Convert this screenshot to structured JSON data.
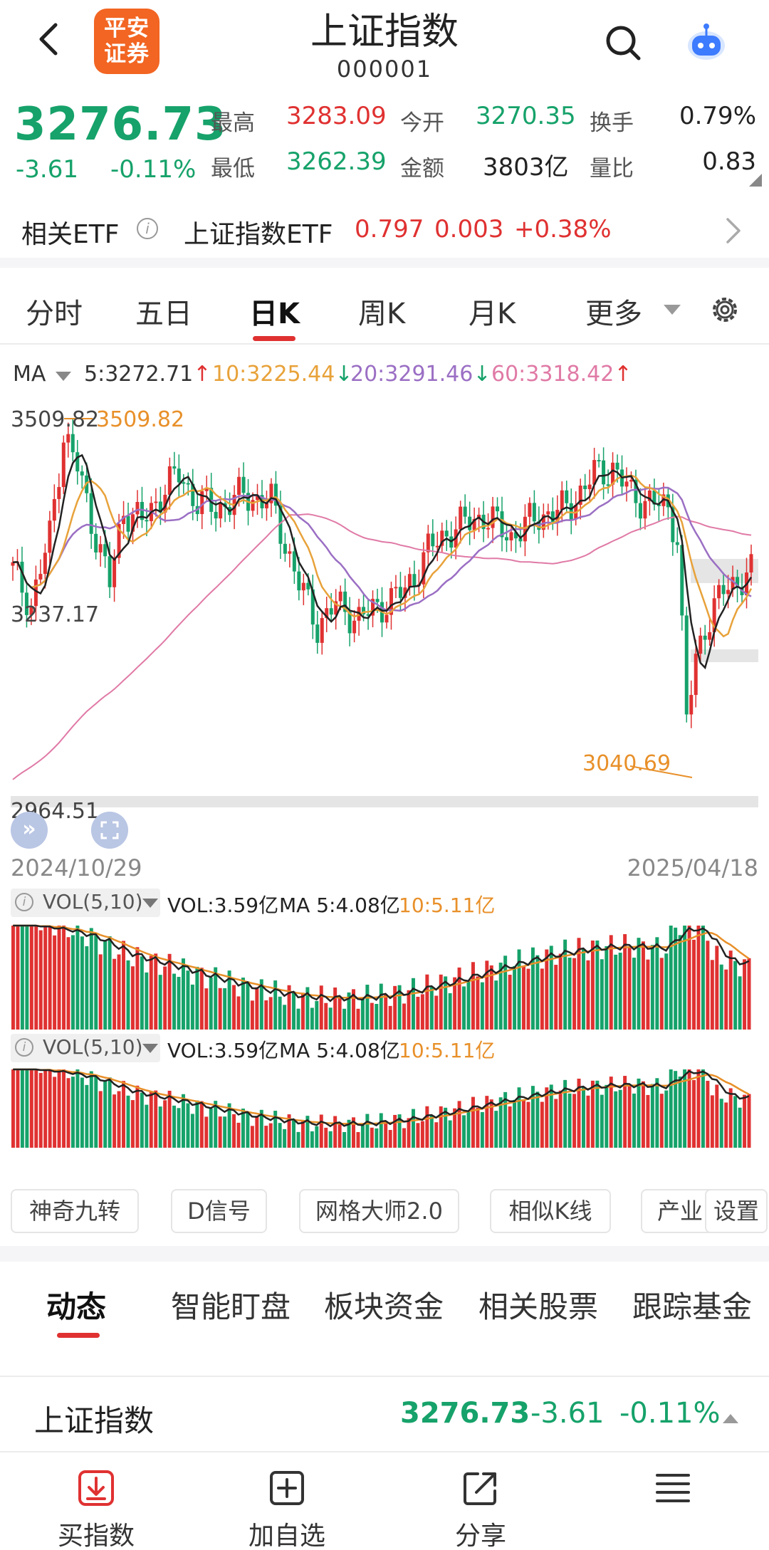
{
  "header": {
    "logo_text": "平安\n证券",
    "title": "上证指数",
    "code": "000001"
  },
  "quote": {
    "price": "3276.73",
    "change": "-3.61",
    "change_pct": "-0.11%",
    "fields": [
      {
        "label": "最高",
        "value": "3283.09",
        "color": "red"
      },
      {
        "label": "今开",
        "value": "3270.35",
        "color": "green"
      },
      {
        "label": "换手",
        "value": "0.79%",
        "color": "black"
      },
      {
        "label": "最低",
        "value": "3262.39",
        "color": "green"
      },
      {
        "label": "金额",
        "value": "3803亿",
        "color": "black"
      },
      {
        "label": "量比",
        "value": "0.83",
        "color": "black"
      }
    ]
  },
  "etf": {
    "label": "相关ETF",
    "name": "上证指数ETF",
    "price": "0.797",
    "change": "0.003",
    "change_pct": "+0.38%"
  },
  "period_tabs": {
    "items": [
      "分时",
      "五日",
      "日K",
      "周K",
      "月K",
      "更多"
    ],
    "active": "日K"
  },
  "ma_legend": {
    "label": "MA",
    "items": [
      {
        "text": "5:3272.71",
        "arrow": "↑",
        "color": "#333333",
        "arrow_color": "#e03131"
      },
      {
        "text": "10:3225.44",
        "arrow": "↓",
        "color": "#e8a23a",
        "arrow_color": "#16a26a"
      },
      {
        "text": "20:3291.46",
        "arrow": "↓",
        "color": "#9b6fc4",
        "arrow_color": "#16a26a"
      },
      {
        "text": "60:3318.42",
        "arrow": "↑",
        "color": "#e07aa6",
        "arrow_color": "#e03131"
      }
    ]
  },
  "chart_axis": {
    "high_label": "3509.82",
    "high_marker": "3509.82",
    "mid_label": "3237.17",
    "low_label": "2964.51",
    "min_marker": "3040.69",
    "date_start": "2024/10/29",
    "date_end": "2025/04/18"
  },
  "chart_data": {
    "type": "candlestick",
    "y_range": [
      2964.51,
      3509.82
    ],
    "x_range": [
      "2024/10/29",
      "2025/04/18"
    ],
    "high": 3509.82,
    "low": 3040.69,
    "ma": {
      "5": 3272.71,
      "10": 3225.44,
      "20": 3291.46,
      "60": 3318.42
    }
  },
  "volume_panels": [
    {
      "selector": "VOL(5,10)",
      "vol": "VOL:3.59亿",
      "ma5": "MA 5:4.08亿",
      "ma10": "10:5.11亿"
    },
    {
      "selector": "VOL(5,10)",
      "vol": "VOL:3.59亿",
      "ma5": "MA 5:4.08亿",
      "ma10": "10:5.11亿"
    }
  ],
  "tools": [
    "神奇九转",
    "D信号",
    "网格大师2.0",
    "相似K线",
    "产业",
    "设置"
  ],
  "feature_tabs": {
    "items": [
      "动态",
      "智能盯盘",
      "板块资金",
      "相关股票",
      "跟踪基金"
    ],
    "active": "动态"
  },
  "bottom_quote": {
    "name": "上证指数",
    "price": "3276.73",
    "change": "-3.61",
    "change_pct": "-0.11%"
  },
  "bottom_nav": [
    {
      "label": "买指数",
      "icon": "buy-download-icon"
    },
    {
      "label": "加自选",
      "icon": "add-watchlist-icon"
    },
    {
      "label": "分享",
      "icon": "share-icon"
    },
    {
      "label": "",
      "icon": "menu-icon"
    }
  ],
  "colors": {
    "up": "#e03131",
    "down": "#16a26a",
    "accent": "#e03131",
    "brand": "#f26522"
  }
}
